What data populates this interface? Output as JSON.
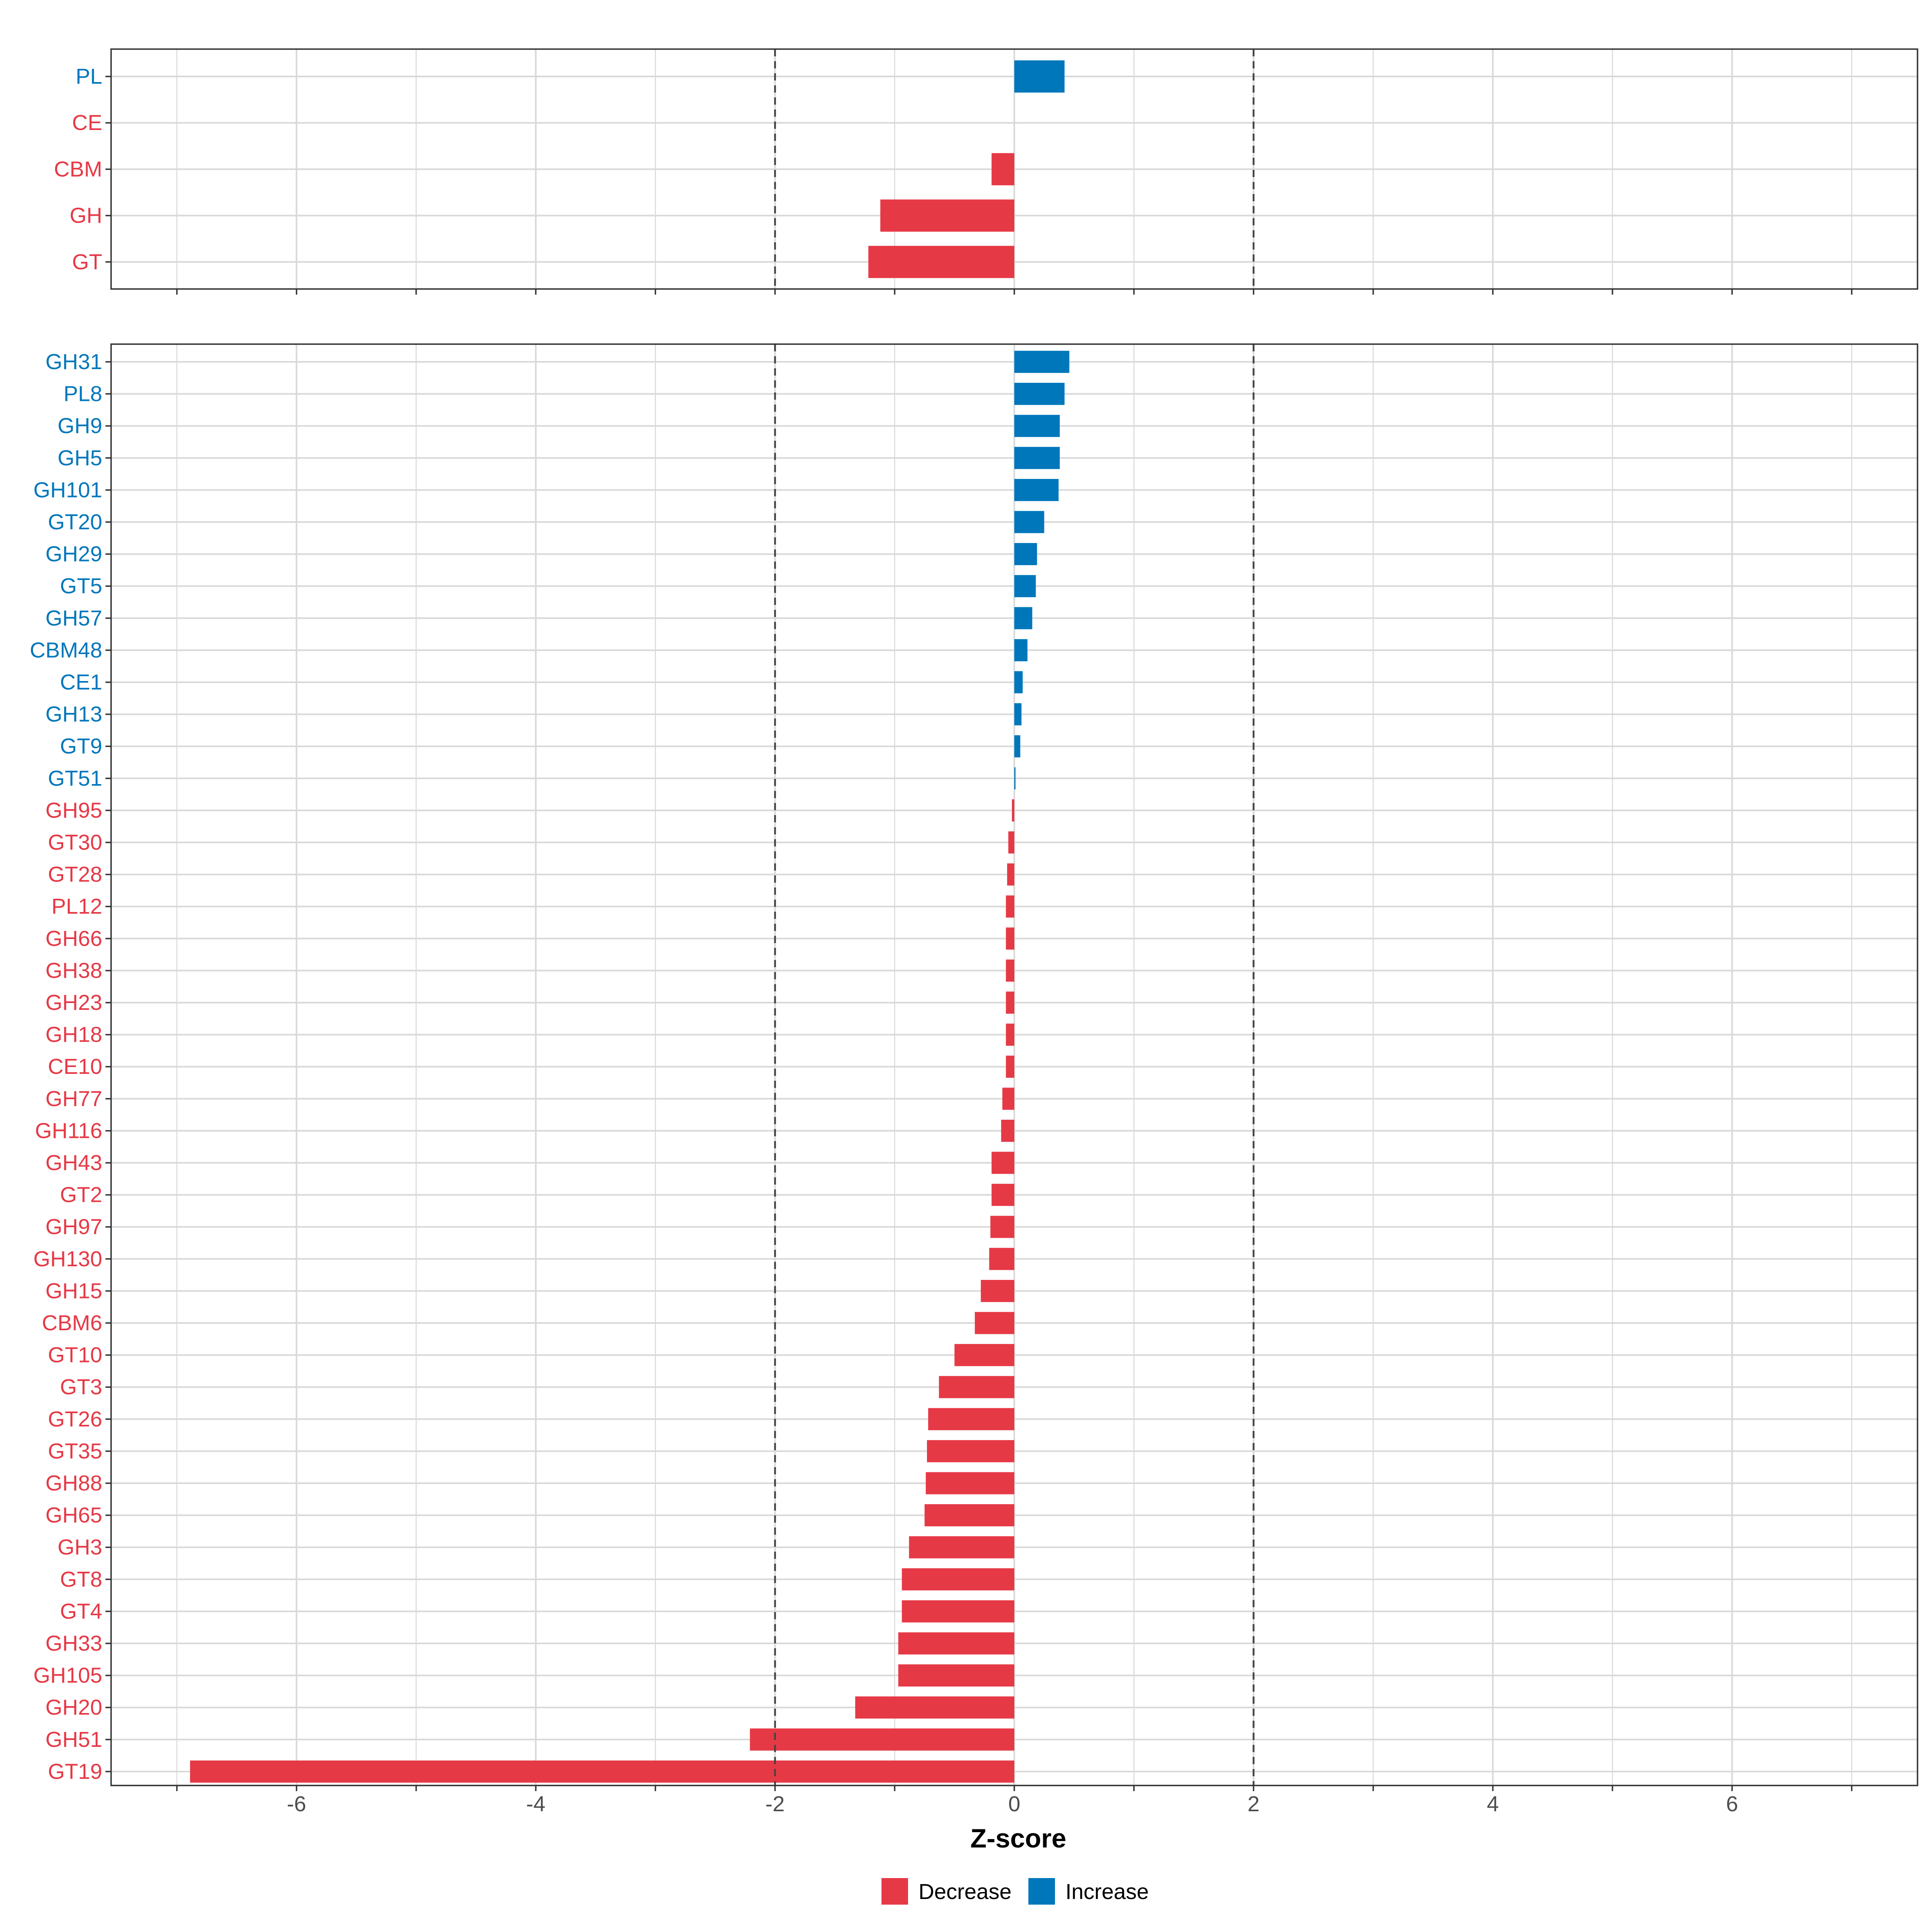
{
  "colors": {
    "decrease": "#E63946",
    "increase": "#0077BB",
    "grid": "#D9D9D9",
    "frame": "#333333",
    "threshold": "#444444",
    "tick_text": "#4D4D4D",
    "title_text": "#000000"
  },
  "chart_data": {
    "type": "bar",
    "orientation": "horizontal",
    "xlabel": "Z-score",
    "xlim": [
      -7.55,
      7.55
    ],
    "xticks": [
      -6,
      -4,
      -2,
      0,
      2,
      4,
      6
    ],
    "xtick_labels": [
      "-6",
      "-4",
      "-2",
      "0",
      "2",
      "4",
      "6"
    ],
    "minor_grid_x": [
      -7,
      -5,
      -3,
      -1,
      1,
      3,
      5,
      7
    ],
    "thresholds": [
      -2,
      2
    ],
    "grid": true,
    "legend": {
      "position": "bottom",
      "entries": [
        {
          "key": "decrease",
          "label": "Decrease"
        },
        {
          "key": "increase",
          "label": "Increase"
        }
      ]
    },
    "panels": [
      {
        "name": "class",
        "categories": [
          "PL",
          "CE",
          "CBM",
          "GH",
          "GT"
        ],
        "values": [
          0.42,
          0.0,
          -0.19,
          -1.12,
          -1.22
        ],
        "directions": [
          "increase",
          "decrease",
          "decrease",
          "decrease",
          "decrease"
        ]
      },
      {
        "name": "family",
        "categories": [
          "GH31",
          "PL8",
          "GH9",
          "GH5",
          "GH101",
          "GT20",
          "GH29",
          "GT5",
          "GH57",
          "CBM48",
          "CE1",
          "GH13",
          "GT9",
          "GT51",
          "GH95",
          "GT30",
          "GT28",
          "PL12",
          "GH66",
          "GH38",
          "GH23",
          "GH18",
          "CE10",
          "GH77",
          "GH116",
          "GH43",
          "GT2",
          "GH97",
          "GH130",
          "GH15",
          "CBM6",
          "GT10",
          "GT3",
          "GT26",
          "GT35",
          "GH88",
          "GH65",
          "GH3",
          "GT8",
          "GT4",
          "GH33",
          "GH105",
          "GH20",
          "GH51",
          "GT19"
        ],
        "values": [
          0.46,
          0.42,
          0.38,
          0.38,
          0.37,
          0.25,
          0.19,
          0.18,
          0.15,
          0.11,
          0.07,
          0.06,
          0.05,
          0.01,
          -0.02,
          -0.05,
          -0.06,
          -0.07,
          -0.07,
          -0.07,
          -0.07,
          -0.07,
          -0.07,
          -0.1,
          -0.11,
          -0.19,
          -0.19,
          -0.2,
          -0.21,
          -0.28,
          -0.33,
          -0.5,
          -0.63,
          -0.72,
          -0.73,
          -0.74,
          -0.75,
          -0.88,
          -0.94,
          -0.94,
          -0.97,
          -0.97,
          -1.33,
          -2.21,
          -6.89
        ],
        "directions": [
          "increase",
          "increase",
          "increase",
          "increase",
          "increase",
          "increase",
          "increase",
          "increase",
          "increase",
          "increase",
          "increase",
          "increase",
          "increase",
          "increase",
          "decrease",
          "decrease",
          "decrease",
          "decrease",
          "decrease",
          "decrease",
          "decrease",
          "decrease",
          "decrease",
          "decrease",
          "decrease",
          "decrease",
          "decrease",
          "decrease",
          "decrease",
          "decrease",
          "decrease",
          "decrease",
          "decrease",
          "decrease",
          "decrease",
          "decrease",
          "decrease",
          "decrease",
          "decrease",
          "decrease",
          "decrease",
          "decrease",
          "decrease",
          "decrease",
          "decrease"
        ]
      }
    ]
  }
}
